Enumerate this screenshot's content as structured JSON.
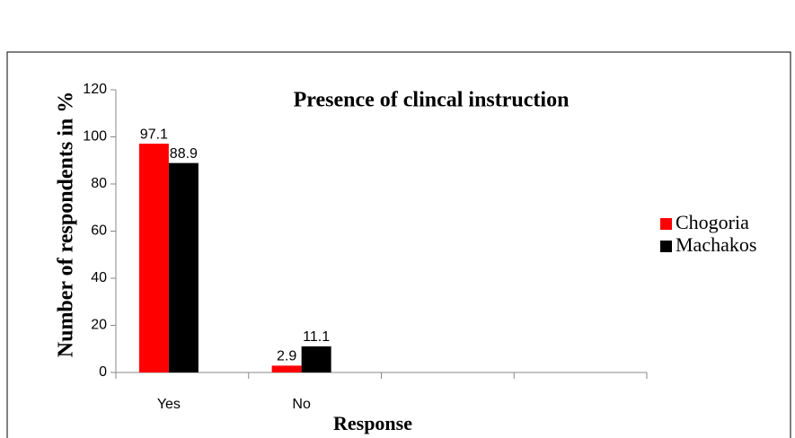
{
  "chart_data": {
    "type": "bar",
    "title": "Presence of clincal instruction",
    "x_label": "Response",
    "y_label": "Number of respondents in %",
    "categories": [
      "Yes",
      "No",
      null,
      null
    ],
    "series": [
      {
        "name": "Chogoria",
        "color": "#ff0000",
        "values": [
          97.1,
          2.9,
          null,
          null
        ]
      },
      {
        "name": "Machakos",
        "color": "#000000",
        "values": [
          88.9,
          11.1,
          null,
          null
        ]
      }
    ],
    "ylim": [
      0,
      120
    ],
    "yticks": [
      0,
      20,
      40,
      60,
      80,
      100,
      120
    ],
    "legend": "right"
  }
}
